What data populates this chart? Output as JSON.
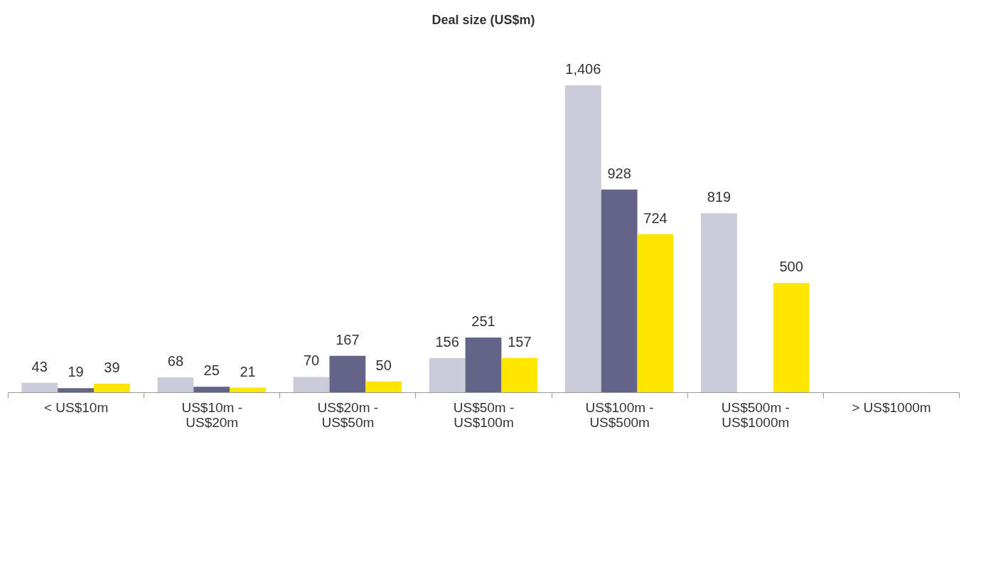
{
  "chart_data": {
    "type": "bar",
    "title": "Deal size (US$m)",
    "categories": [
      "< US$10m",
      "US$10m - US$20m",
      "US$20m - US$50m",
      "US$50m - US$100m",
      "US$100m - US$500m",
      "US$500m - US$1000m",
      "> US$1000m"
    ],
    "series": [
      {
        "color": "#cccbd9",
        "values": [
          43,
          68,
          70,
          156,
          1406,
          819,
          null
        ],
        "value_labels": [
          "43",
          "68",
          "70",
          "156",
          "1,406",
          "819",
          null
        ]
      },
      {
        "color": "#646489",
        "values": [
          19,
          25,
          167,
          251,
          928,
          null,
          null
        ],
        "value_labels": [
          "19",
          "25",
          "167",
          "251",
          "928",
          null,
          null
        ]
      },
      {
        "color": "#ffe600",
        "values": [
          39,
          21,
          50,
          157,
          724,
          500,
          null
        ],
        "value_labels": [
          "39",
          "21",
          "50",
          "157",
          "724",
          "500",
          null
        ]
      }
    ],
    "grid": false,
    "legend": false
  }
}
